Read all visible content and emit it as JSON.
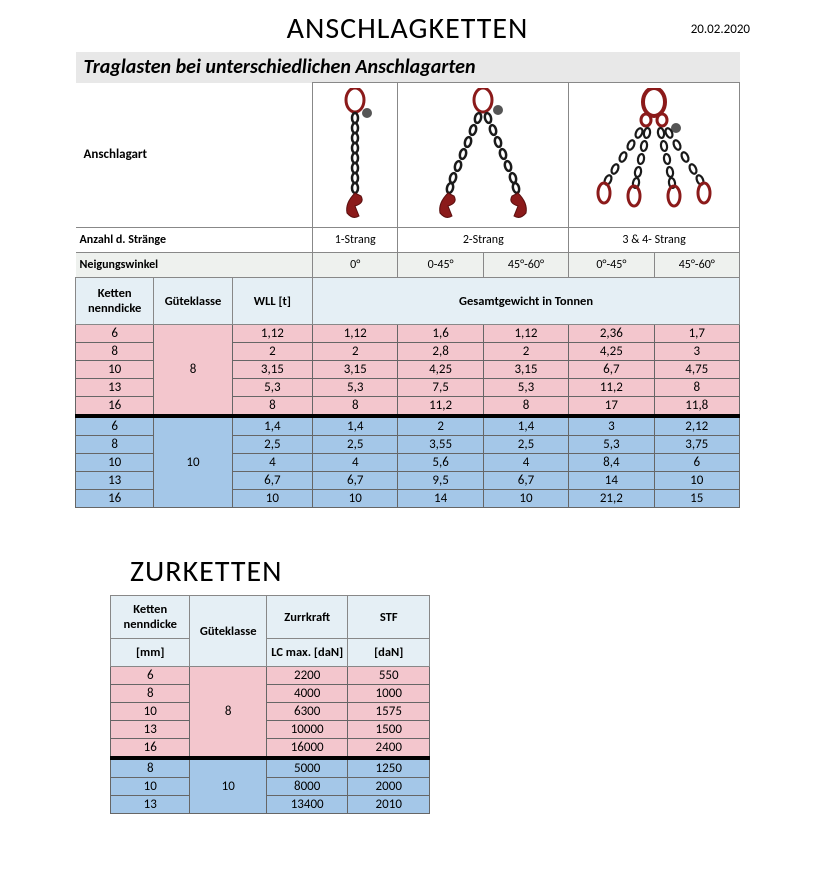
{
  "main_title": "ANSCHLAGKETTEN",
  "date": "20.02.2020",
  "subtitle": "Traglasten bei unterschiedlichen Anschlagarten",
  "anschlagart_label": "Anschlagart",
  "strand_label": "Anzahl d. Stränge",
  "strands": [
    "1-Strang",
    "2-Strang",
    "3 & 4- Strang"
  ],
  "angle_label": "Neigungswinkel",
  "angles": [
    "0°",
    "0-45°",
    "45°-60°",
    "0°-45°",
    "45°-60°"
  ],
  "col_ketten": "Ketten nenndicke",
  "col_gk": "Güteklasse",
  "col_wll": "WLL [t]",
  "col_gesamt": "Gesamtgewicht in Tonnen",
  "gk8": "8",
  "gk10": "10",
  "rows8": [
    {
      "k": "6",
      "w": "1,12",
      "v": [
        "1,12",
        "1,6",
        "1,12",
        "2,36",
        "1,7"
      ]
    },
    {
      "k": "8",
      "w": "2",
      "v": [
        "2",
        "2,8",
        "2",
        "4,25",
        "3"
      ]
    },
    {
      "k": "10",
      "w": "3,15",
      "v": [
        "3,15",
        "4,25",
        "3,15",
        "6,7",
        "4,75"
      ]
    },
    {
      "k": "13",
      "w": "5,3",
      "v": [
        "5,3",
        "7,5",
        "5,3",
        "11,2",
        "8"
      ]
    },
    {
      "k": "16",
      "w": "8",
      "v": [
        "8",
        "11,2",
        "8",
        "17",
        "11,8"
      ]
    }
  ],
  "rows10": [
    {
      "k": "6",
      "w": "1,4",
      "v": [
        "1,4",
        "2",
        "1,4",
        "3",
        "2,12"
      ]
    },
    {
      "k": "8",
      "w": "2,5",
      "v": [
        "2,5",
        "3,55",
        "2,5",
        "5,3",
        "3,75"
      ]
    },
    {
      "k": "10",
      "w": "4",
      "v": [
        "4",
        "5,6",
        "4",
        "8,4",
        "6"
      ]
    },
    {
      "k": "13",
      "w": "6,7",
      "v": [
        "6,7",
        "9,5",
        "6,7",
        "14",
        "10"
      ]
    },
    {
      "k": "16",
      "w": "10",
      "v": [
        "10",
        "14",
        "10",
        "21,2",
        "15"
      ]
    }
  ],
  "title2": "ZURKETTEN",
  "t2_ketten": "Ketten nenndicke",
  "t2_mm": "[mm]",
  "t2_gk": "Güteklasse",
  "t2_zurr": "Zurrkraft",
  "t2_lc": "LC max. [daN]",
  "t2_stf": "STF",
  "t2_dan": "[daN]",
  "t2rows8": [
    {
      "k": "6",
      "lc": "2200",
      "stf": "550"
    },
    {
      "k": "8",
      "lc": "4000",
      "stf": "1000"
    },
    {
      "k": "10",
      "lc": "6300",
      "stf": "1575"
    },
    {
      "k": "13",
      "lc": "10000",
      "stf": "1500"
    },
    {
      "k": "16",
      "lc": "16000",
      "stf": "2400"
    }
  ],
  "t2rows10": [
    {
      "k": "8",
      "lc": "5000",
      "stf": "1250"
    },
    {
      "k": "10",
      "lc": "8000",
      "stf": "2000"
    },
    {
      "k": "13",
      "lc": "13400",
      "stf": "2010"
    }
  ],
  "colors": {
    "pink": "#f3c6cd",
    "blue": "#a4c7e8",
    "grey": "#d9d9d9",
    "headbg": "#e5eff5",
    "anglebg": "#eef1ee",
    "ring": "#8b1a1a",
    "chain": "#1a1a1a"
  }
}
